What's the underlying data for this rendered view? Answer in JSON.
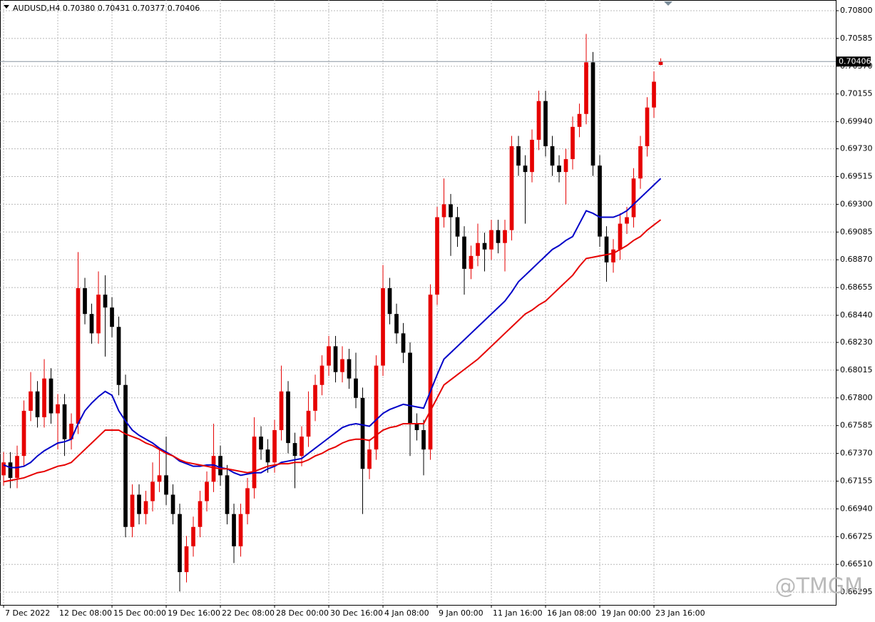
{
  "chart_data": {
    "type": "candlestick",
    "title": "AUDUSD,H4  0.70380 0.70431 0.70377 0.70406",
    "watermark": "@TMGM",
    "up_color": "#e60000",
    "down_color": "#000000",
    "grid": true,
    "xlim": [
      -0.53,
      122.84
    ],
    "xticks": [
      {
        "value": 0,
        "label": "7 Dec 2022"
      },
      {
        "value": 8,
        "label": "12 Dec 08:00"
      },
      {
        "value": 16,
        "label": "15 Dec 00:00"
      },
      {
        "value": 24,
        "label": "19 Dec 16:00"
      },
      {
        "value": 32,
        "label": "22 Dec 08:00"
      },
      {
        "value": 40,
        "label": "28 Dec 00:00"
      },
      {
        "value": 48,
        "label": "30 Dec 16:00"
      },
      {
        "value": 56,
        "label": "4 Jan 08:00"
      },
      {
        "value": 64,
        "label": "9 Jan 00:00"
      },
      {
        "value": 72,
        "label": "11 Jan 16:00"
      },
      {
        "value": 80,
        "label": "16 Jan 08:00"
      },
      {
        "value": 88,
        "label": "19 Jan 00:00"
      },
      {
        "value": 96,
        "label": "23 Jan 16:00"
      }
    ],
    "ylim": [
      0.66196,
      0.70883
    ],
    "yticks": [
      {
        "value": 0.708,
        "label": "0.70800"
      },
      {
        "value": 0.70585,
        "label": "0.70585"
      },
      {
        "value": 0.7037,
        "label": "0.70370"
      },
      {
        "value": 0.70155,
        "label": "0.70155"
      },
      {
        "value": 0.6994,
        "label": "0.69940"
      },
      {
        "value": 0.6973,
        "label": "0.69730"
      },
      {
        "value": 0.69515,
        "label": "0.69515"
      },
      {
        "value": 0.693,
        "label": "0.69300"
      },
      {
        "value": 0.69085,
        "label": "0.69085"
      },
      {
        "value": 0.6887,
        "label": "0.68870"
      },
      {
        "value": 0.68655,
        "label": "0.68655"
      },
      {
        "value": 0.6844,
        "label": "0.68440"
      },
      {
        "value": 0.6823,
        "label": "0.68230"
      },
      {
        "value": 0.68015,
        "label": "0.68015"
      },
      {
        "value": 0.678,
        "label": "0.67800"
      },
      {
        "value": 0.67585,
        "label": "0.67585"
      },
      {
        "value": 0.6737,
        "label": "0.67370"
      },
      {
        "value": 0.67155,
        "label": "0.67155"
      },
      {
        "value": 0.6694,
        "label": "0.66940"
      },
      {
        "value": 0.66725,
        "label": "0.66725"
      },
      {
        "value": 0.6651,
        "label": "0.66510"
      },
      {
        "value": 0.66295,
        "label": "0.66295"
      }
    ],
    "current_price": {
      "value": 0.70406,
      "label": "0.70406"
    },
    "x": [
      0,
      1,
      2,
      3,
      4,
      5,
      6,
      7,
      8,
      9,
      10,
      11,
      12,
      13,
      14,
      15,
      16,
      17,
      18,
      19,
      20,
      21,
      22,
      23,
      24,
      25,
      26,
      27,
      28,
      29,
      30,
      31,
      32,
      33,
      34,
      35,
      36,
      37,
      38,
      39,
      40,
      41,
      42,
      43,
      44,
      45,
      46,
      47,
      48,
      49,
      50,
      51,
      52,
      53,
      54,
      55,
      56,
      57,
      58,
      59,
      60,
      61,
      62,
      63,
      64,
      65,
      66,
      67,
      68,
      69,
      70,
      71,
      72,
      73,
      74,
      75,
      76,
      77,
      78,
      79,
      80,
      81,
      82,
      83,
      84,
      85,
      86,
      87,
      88,
      89,
      90,
      91,
      92,
      93,
      94,
      95,
      96,
      97
    ],
    "open": [
      0.672,
      0.673,
      0.6718,
      0.6735,
      0.677,
      0.6785,
      0.6765,
      0.6795,
      0.6768,
      0.6775,
      0.6748,
      0.676,
      0.6865,
      0.6845,
      0.683,
      0.686,
      0.685,
      0.6835,
      0.679,
      0.668,
      0.6705,
      0.669,
      0.67,
      0.6715,
      0.672,
      0.6705,
      0.669,
      0.6645,
      0.6665,
      0.668,
      0.67,
      0.6715,
      0.6735,
      0.672,
      0.669,
      0.6665,
      0.669,
      0.671,
      0.675,
      0.674,
      0.673,
      0.6755,
      0.6785,
      0.6745,
      0.6735,
      0.675,
      0.677,
      0.679,
      0.6805,
      0.682,
      0.68,
      0.681,
      0.6795,
      0.678,
      0.6725,
      0.674,
      0.6805,
      0.6865,
      0.6845,
      0.683,
      0.6815,
      0.676,
      0.6755,
      0.674,
      0.686,
      0.692,
      0.693,
      0.692,
      0.6905,
      0.688,
      0.689,
      0.69,
      0.6895,
      0.691,
      0.69,
      0.691,
      0.6975,
      0.696,
      0.6955,
      0.698,
      0.701,
      0.6975,
      0.696,
      0.6955,
      0.6965,
      0.699,
      0.7,
      0.704,
      0.696,
      0.6905,
      0.6885,
      0.6895,
      0.6915,
      0.692,
      0.695,
      0.6975,
      0.7005,
      0.7038
    ],
    "high": [
      0.6738,
      0.6738,
      0.6743,
      0.6778,
      0.68,
      0.6793,
      0.681,
      0.6803,
      0.6783,
      0.6783,
      0.6768,
      0.6893,
      0.6873,
      0.6853,
      0.6878,
      0.6875,
      0.6858,
      0.6843,
      0.6798,
      0.6713,
      0.6713,
      0.6708,
      0.673,
      0.674,
      0.675,
      0.6713,
      0.6698,
      0.6673,
      0.6688,
      0.6708,
      0.6723,
      0.676,
      0.6743,
      0.6728,
      0.6698,
      0.6698,
      0.6718,
      0.6765,
      0.6758,
      0.6748,
      0.6763,
      0.6805,
      0.6793,
      0.6753,
      0.6758,
      0.6785,
      0.6798,
      0.6813,
      0.6828,
      0.6828,
      0.682,
      0.6818,
      0.6815,
      0.6788,
      0.6748,
      0.6813,
      0.6883,
      0.6873,
      0.6853,
      0.6838,
      0.6823,
      0.6768,
      0.6763,
      0.6868,
      0.6928,
      0.695,
      0.6938,
      0.6928,
      0.6913,
      0.6898,
      0.6915,
      0.6908,
      0.6918,
      0.6918,
      0.6918,
      0.6983,
      0.6983,
      0.6968,
      0.6988,
      0.7018,
      0.7018,
      0.6983,
      0.6968,
      0.6973,
      0.6998,
      0.7008,
      0.7062,
      0.7048,
      0.6968,
      0.6913,
      0.6903,
      0.6923,
      0.6928,
      0.6958,
      0.6983,
      0.7013,
      0.7033,
      0.70431
    ],
    "low": [
      0.6712,
      0.671,
      0.671,
      0.6727,
      0.6762,
      0.6757,
      0.6757,
      0.676,
      0.674,
      0.6735,
      0.674,
      0.6752,
      0.6837,
      0.6822,
      0.6822,
      0.6812,
      0.6827,
      0.6782,
      0.6672,
      0.6672,
      0.6682,
      0.6682,
      0.6692,
      0.6707,
      0.6697,
      0.6682,
      0.663,
      0.6637,
      0.6657,
      0.6672,
      0.6692,
      0.6707,
      0.6712,
      0.6682,
      0.6652,
      0.6657,
      0.6682,
      0.6702,
      0.6732,
      0.6722,
      0.6722,
      0.6747,
      0.6737,
      0.671,
      0.6727,
      0.6742,
      0.6762,
      0.6782,
      0.6797,
      0.6792,
      0.6792,
      0.6787,
      0.6772,
      0.669,
      0.6717,
      0.6732,
      0.6797,
      0.6837,
      0.6822,
      0.6807,
      0.6735,
      0.6747,
      0.672,
      0.6732,
      0.6852,
      0.6912,
      0.689,
      0.6897,
      0.686,
      0.6872,
      0.6882,
      0.6878,
      0.6887,
      0.6892,
      0.6878,
      0.6902,
      0.6952,
      0.6915,
      0.6947,
      0.6972,
      0.6967,
      0.6952,
      0.6947,
      0.693,
      0.6957,
      0.6982,
      0.6992,
      0.6952,
      0.6897,
      0.687,
      0.6877,
      0.6887,
      0.6907,
      0.6912,
      0.6942,
      0.6967,
      0.6997,
      0.70377
    ],
    "close": [
      0.673,
      0.6718,
      0.6735,
      0.677,
      0.6785,
      0.6765,
      0.6795,
      0.6768,
      0.6775,
      0.6748,
      0.676,
      0.6865,
      0.6845,
      0.683,
      0.686,
      0.685,
      0.6835,
      0.679,
      0.668,
      0.6705,
      0.669,
      0.67,
      0.6715,
      0.672,
      0.6705,
      0.669,
      0.6645,
      0.6665,
      0.668,
      0.67,
      0.6715,
      0.6735,
      0.672,
      0.669,
      0.6665,
      0.669,
      0.671,
      0.675,
      0.674,
      0.673,
      0.6755,
      0.6785,
      0.6745,
      0.6735,
      0.675,
      0.677,
      0.679,
      0.6805,
      0.682,
      0.68,
      0.681,
      0.6795,
      0.678,
      0.6725,
      0.674,
      0.6805,
      0.6865,
      0.6845,
      0.683,
      0.6815,
      0.676,
      0.6755,
      0.674,
      0.686,
      0.692,
      0.693,
      0.692,
      0.6905,
      0.688,
      0.689,
      0.69,
      0.6895,
      0.691,
      0.69,
      0.691,
      0.6975,
      0.696,
      0.6955,
      0.698,
      0.701,
      0.6975,
      0.696,
      0.6955,
      0.6965,
      0.699,
      0.7,
      0.704,
      0.696,
      0.6905,
      0.6885,
      0.6895,
      0.6915,
      0.692,
      0.695,
      0.6975,
      0.7005,
      0.7025,
      0.70406
    ],
    "lines": [
      {
        "color": "#0000c8",
        "values": [
          0.6728,
          0.6726,
          0.6726,
          0.6727,
          0.673,
          0.6735,
          0.6739,
          0.6742,
          0.6745,
          0.6746,
          0.6748,
          0.676,
          0.677,
          0.6776,
          0.6781,
          0.6785,
          0.6782,
          0.677,
          0.6762,
          0.6755,
          0.6751,
          0.6748,
          0.6745,
          0.6741,
          0.6738,
          0.6735,
          0.6731,
          0.6729,
          0.6727,
          0.6727,
          0.6728,
          0.6728,
          0.6726,
          0.6725,
          0.6722,
          0.672,
          0.6721,
          0.6722,
          0.6722,
          0.6725,
          0.6727,
          0.673,
          0.6731,
          0.6732,
          0.6733,
          0.6737,
          0.6741,
          0.6745,
          0.6749,
          0.6753,
          0.6757,
          0.6759,
          0.676,
          0.6759,
          0.6758,
          0.6763,
          0.6768,
          0.6771,
          0.6773,
          0.6775,
          0.6774,
          0.6773,
          0.6772,
          0.6785,
          0.6798,
          0.681,
          0.6815,
          0.682,
          0.6825,
          0.683,
          0.6835,
          0.684,
          0.6845,
          0.685,
          0.6855,
          0.6862,
          0.687,
          0.6875,
          0.688,
          0.6885,
          0.689,
          0.6895,
          0.6898,
          0.6902,
          0.6905,
          0.6915,
          0.6925,
          0.6923,
          0.692,
          0.692,
          0.692,
          0.6922,
          0.6925,
          0.693,
          0.6935,
          0.694,
          0.6945,
          0.695
        ]
      },
      {
        "color": "#e60000",
        "values": [
          0.6715,
          0.6716,
          0.6717,
          0.6718,
          0.672,
          0.6722,
          0.6723,
          0.6725,
          0.6727,
          0.6728,
          0.673,
          0.6735,
          0.674,
          0.6745,
          0.675,
          0.6755,
          0.6755,
          0.6755,
          0.6752,
          0.675,
          0.6748,
          0.6745,
          0.6743,
          0.674,
          0.6737,
          0.6735,
          0.6732,
          0.673,
          0.6729,
          0.6728,
          0.6727,
          0.6726,
          0.6725,
          0.6725,
          0.6724,
          0.6723,
          0.6722,
          0.6723,
          0.6725,
          0.6727,
          0.6728,
          0.6729,
          0.6729,
          0.673,
          0.673,
          0.6732,
          0.6735,
          0.6737,
          0.674,
          0.6742,
          0.6745,
          0.6747,
          0.6748,
          0.6748,
          0.6747,
          0.6751,
          0.6755,
          0.6757,
          0.6758,
          0.676,
          0.676,
          0.676,
          0.676,
          0.677,
          0.678,
          0.679,
          0.6794,
          0.6798,
          0.6802,
          0.6806,
          0.681,
          0.6815,
          0.682,
          0.6825,
          0.683,
          0.6835,
          0.684,
          0.6845,
          0.6848,
          0.6852,
          0.6855,
          0.686,
          0.6865,
          0.687,
          0.6875,
          0.6882,
          0.6888,
          0.6889,
          0.689,
          0.6891,
          0.6892,
          0.6895,
          0.6898,
          0.6902,
          0.6905,
          0.691,
          0.6914,
          0.6918
        ]
      }
    ]
  }
}
